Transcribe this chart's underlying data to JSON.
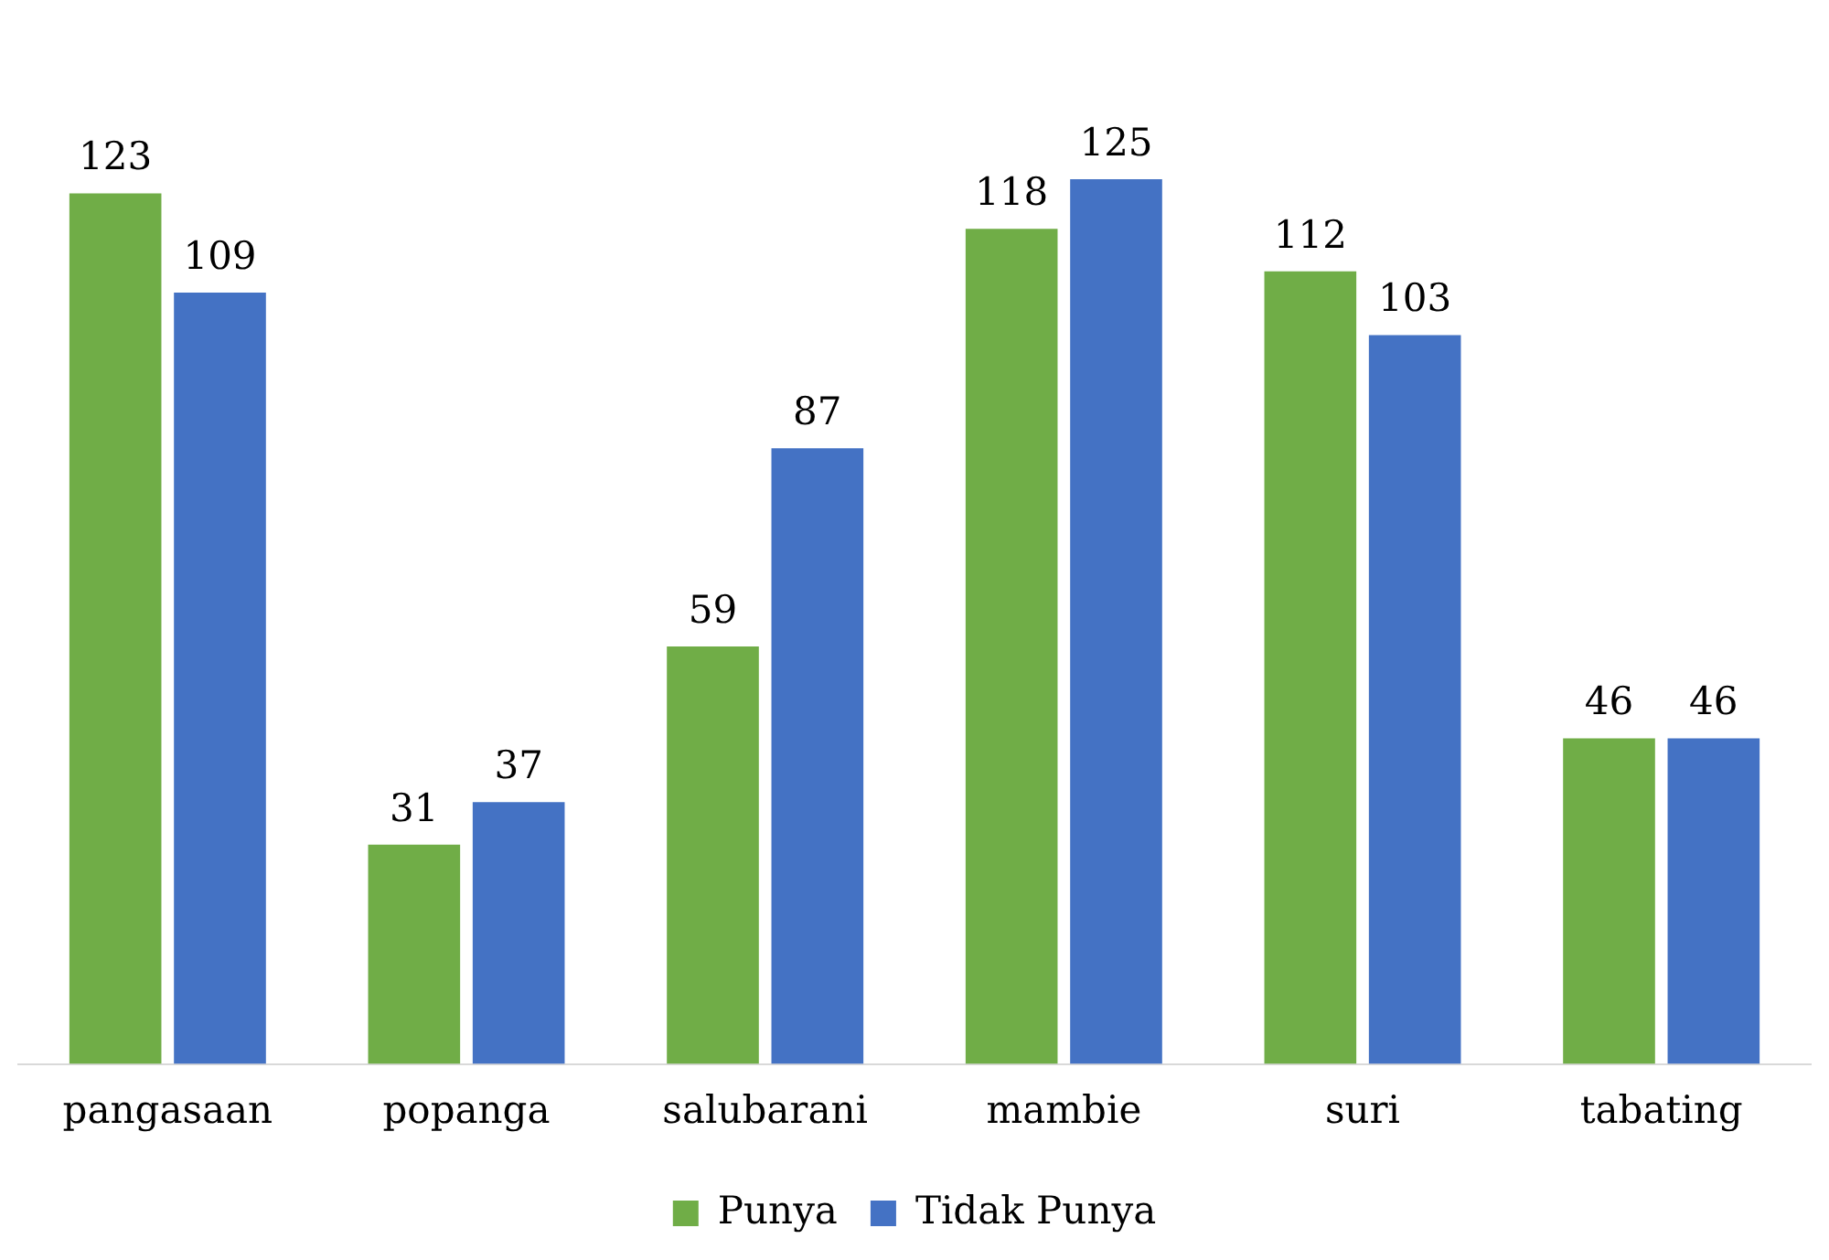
{
  "chart_data": {
    "type": "bar",
    "categories": [
      "pangasaan",
      "popanga",
      "salubarani",
      "mambie",
      "suri",
      "tabating"
    ],
    "series": [
      {
        "name": "Punya",
        "color": "#70ad47",
        "values": [
          123,
          31,
          59,
          118,
          112,
          46
        ]
      },
      {
        "name": "Tidak Punya",
        "color": "#4472c4",
        "values": [
          109,
          37,
          87,
          125,
          103,
          46
        ]
      }
    ],
    "data_labels": true,
    "legend": "bottom",
    "grid": false
  }
}
